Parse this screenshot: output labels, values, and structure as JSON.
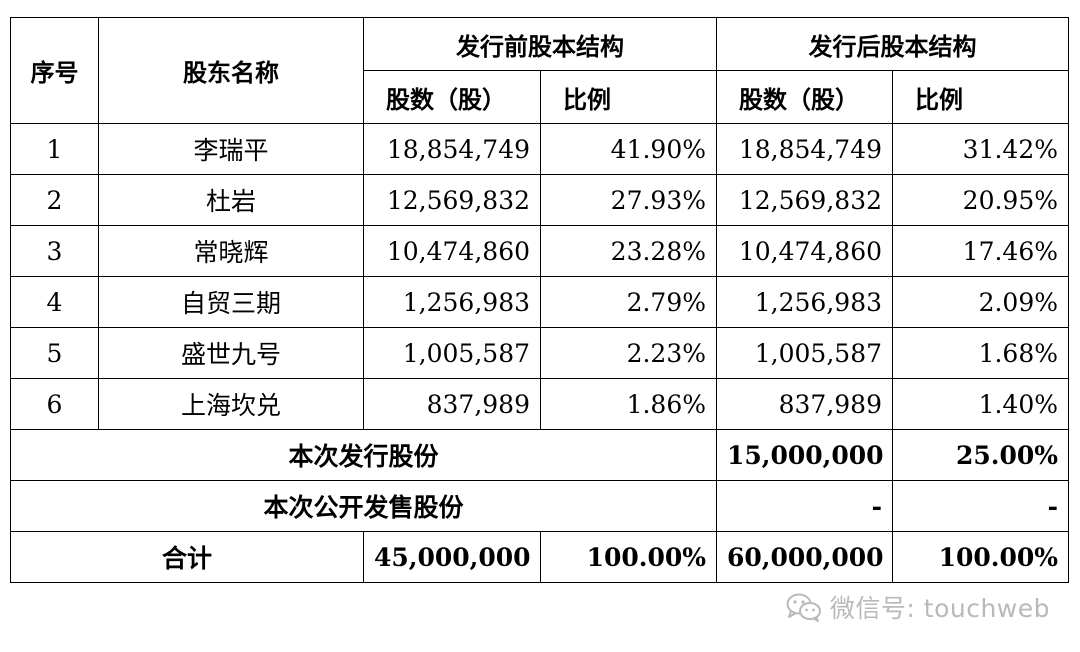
{
  "table": {
    "headers": {
      "index": "序号",
      "name": "股东名称",
      "pre_group": "发行前股本结构",
      "post_group": "发行后股本结构",
      "pre_shares": "股数（股）",
      "pre_ratio": "比例",
      "post_shares": "股数（股）",
      "post_ratio": "比例"
    },
    "rows": [
      {
        "index": "1",
        "name": "李瑞平",
        "pre_shares": "18,854,749",
        "pre_ratio": "41.90%",
        "post_shares": "18,854,749",
        "post_ratio": "31.42%"
      },
      {
        "index": "2",
        "name": "杜岩",
        "pre_shares": "12,569,832",
        "pre_ratio": "27.93%",
        "post_shares": "12,569,832",
        "post_ratio": "20.95%"
      },
      {
        "index": "3",
        "name": "常晓辉",
        "pre_shares": "10,474,860",
        "pre_ratio": "23.28%",
        "post_shares": "10,474,860",
        "post_ratio": "17.46%"
      },
      {
        "index": "4",
        "name": "自贸三期",
        "pre_shares": "1,256,983",
        "pre_ratio": "2.79%",
        "post_shares": "1,256,983",
        "post_ratio": "2.09%"
      },
      {
        "index": "5",
        "name": "盛世九号",
        "pre_shares": "1,005,587",
        "pre_ratio": "2.23%",
        "post_shares": "1,005,587",
        "post_ratio": "1.68%"
      },
      {
        "index": "6",
        "name": "上海坎兑",
        "pre_shares": "837,989",
        "pre_ratio": "1.86%",
        "post_shares": "837,989",
        "post_ratio": "1.40%"
      }
    ],
    "issue": {
      "label": "本次发行股份",
      "post_shares": "15,000,000",
      "post_ratio": "25.00%"
    },
    "public_sale": {
      "label": "本次公开发售股份",
      "post_shares": "-",
      "post_ratio": "-"
    },
    "total": {
      "label": "合计",
      "pre_shares": "45,000,000",
      "pre_ratio": "100.00%",
      "post_shares": "60,000,000",
      "post_ratio": "100.00%"
    }
  },
  "watermark": {
    "icon": "wechat-icon",
    "text": "微信号: touchweb"
  }
}
